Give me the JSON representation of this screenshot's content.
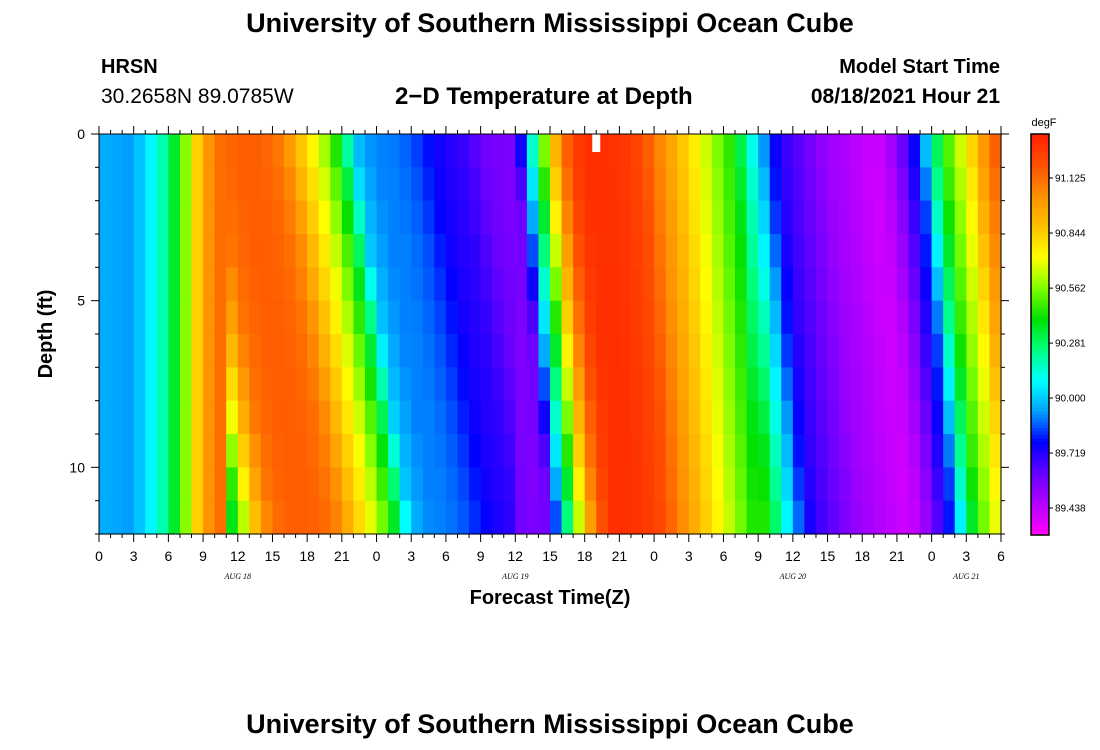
{
  "header": {
    "title": "University of Southern Mississippi Ocean Cube",
    "footer_title": "University of Southern Mississippi Ocean Cube",
    "station": "HRSN",
    "location": "30.2658N  89.0785W",
    "model_start_label": "Model Start Time",
    "model_start_value": "08/18/2021 Hour 21"
  },
  "chart_data": {
    "type": "heatmap",
    "title": "2−D Temperature at Depth",
    "xlabel": "Forecast Time(Z)",
    "ylabel": "Depth (ft)",
    "x_ticks": [
      "0",
      "3",
      "6",
      "9",
      "12",
      "15",
      "18",
      "21",
      "0",
      "3",
      "6",
      "9",
      "12",
      "15",
      "18",
      "21",
      "0",
      "3",
      "6",
      "9",
      "12",
      "15",
      "18",
      "21",
      "0",
      "3",
      "6"
    ],
    "x_hours": [
      0,
      3,
      6,
      9,
      12,
      15,
      18,
      21,
      24,
      27,
      30,
      33,
      36,
      39,
      42,
      45,
      48,
      51,
      54,
      57,
      60,
      63,
      66,
      69,
      72,
      75,
      78
    ],
    "date_labels": [
      {
        "text": "AUG 18",
        "hour": 12
      },
      {
        "text": "AUG 19",
        "hour": 36
      },
      {
        "text": "AUG 20",
        "hour": 60
      },
      {
        "text": "AUG 21",
        "hour": 75
      }
    ],
    "xlim": [
      0,
      78
    ],
    "y_ticks": [
      0,
      5,
      10
    ],
    "ylim": [
      0,
      12
    ],
    "y_inverted": true,
    "colorbar": {
      "unit": "degF",
      "labels": [
        "91.125",
        "90.844",
        "90.562",
        "90.281",
        "90.000",
        "89.719",
        "89.438"
      ],
      "values": [
        91.125,
        90.844,
        90.562,
        90.281,
        90.0,
        89.719,
        89.438
      ],
      "range": [
        89.3,
        91.35
      ],
      "colors": [
        "#ff00ff",
        "#b400ff",
        "#6400ff",
        "#0000ff",
        "#00a0ff",
        "#00ffff",
        "#00ff80",
        "#00e000",
        "#80ff00",
        "#ffff00",
        "#ffc000",
        "#ff9000",
        "#ff5000",
        "#ff2000"
      ]
    },
    "surface_profile": {
      "hours": [
        0,
        1,
        2,
        3,
        4,
        5,
        6,
        7,
        8,
        9,
        10,
        11,
        12,
        13,
        14,
        15,
        16,
        17,
        18,
        19,
        20,
        21,
        22,
        23,
        24,
        25,
        26,
        27,
        28,
        29,
        30,
        31,
        32,
        33,
        34,
        35,
        36,
        37,
        38,
        39,
        40,
        41,
        42,
        43,
        44,
        45,
        46,
        47,
        48,
        49,
        50,
        51,
        52,
        53,
        54,
        55,
        56,
        57,
        58,
        59,
        60,
        61,
        62,
        63,
        64,
        65,
        66,
        67,
        68,
        69,
        70,
        71,
        72,
        73,
        74,
        75,
        76,
        77,
        78
      ],
      "values": [
        89.95,
        89.95,
        89.93,
        89.93,
        90.05,
        90.1,
        90.28,
        90.42,
        90.72,
        90.95,
        91.1,
        91.14,
        91.16,
        91.16,
        91.15,
        91.12,
        91.05,
        90.9,
        90.78,
        90.65,
        90.5,
        90.3,
        90.0,
        89.93,
        89.9,
        89.9,
        89.88,
        89.85,
        89.8,
        89.75,
        89.72,
        89.7,
        89.65,
        89.6,
        89.58,
        89.56,
        89.6,
        90.0,
        90.4,
        90.8,
        91.1,
        91.25,
        91.3,
        91.3,
        91.3,
        91.28,
        91.25,
        91.2,
        91.1,
        91.0,
        90.9,
        90.8,
        90.7,
        90.6,
        90.5,
        90.4,
        90.2,
        90.0,
        89.8,
        89.7,
        89.65,
        89.6,
        89.55,
        89.5,
        89.48,
        89.45,
        89.42,
        89.4,
        89.45,
        89.55,
        89.7,
        89.85,
        90.2,
        90.45,
        90.6,
        90.75,
        90.95,
        91.1,
        91.25
      ]
    },
    "depth_shift_hours": [
      {
        "start": 0,
        "end": 11,
        "shift_at_bottom": 0
      },
      {
        "start": 11,
        "end": 36,
        "shift_at_bottom": 5
      },
      {
        "start": 36,
        "end": 44,
        "shift_at_bottom": 3
      },
      {
        "start": 44,
        "end": 57,
        "shift_at_bottom": 2
      },
      {
        "start": 57,
        "end": 70,
        "shift_at_bottom": 3
      },
      {
        "start": 70,
        "end": 78,
        "shift_at_bottom": 3
      }
    ],
    "marker": {
      "hour": 43,
      "depth": 0
    }
  }
}
